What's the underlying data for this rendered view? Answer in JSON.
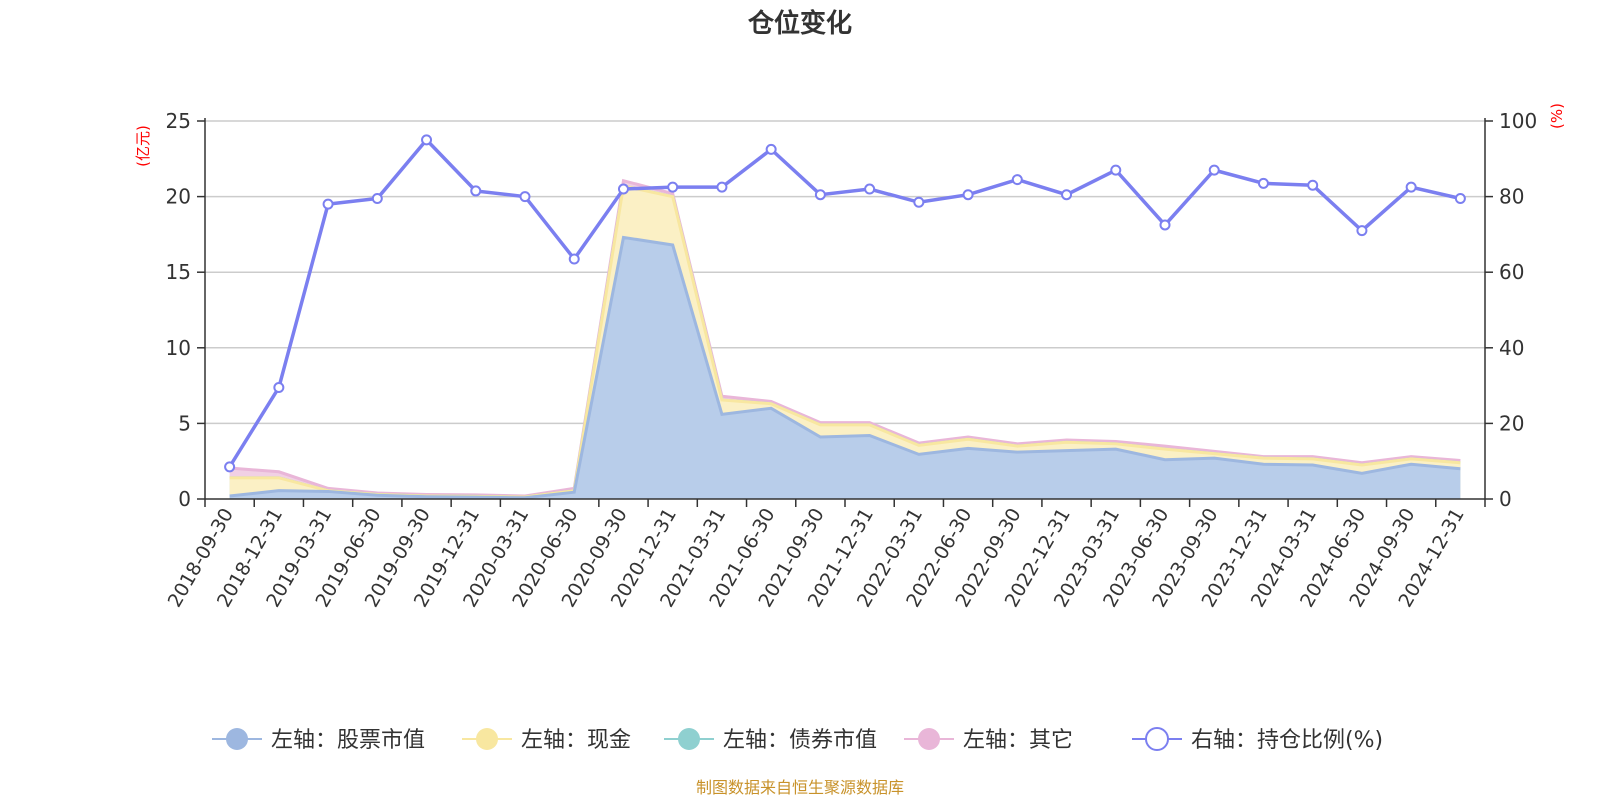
{
  "chart_data": {
    "type": "area",
    "title": "仓位变化",
    "left_unit": "(亿元)",
    "right_unit": "(%)",
    "categories": [
      "2018-09-30",
      "2018-12-31",
      "2019-03-31",
      "2019-06-30",
      "2019-09-30",
      "2019-12-31",
      "2020-03-31",
      "2020-06-30",
      "2020-09-30",
      "2020-12-31",
      "2021-03-31",
      "2021-06-30",
      "2021-09-30",
      "2021-12-31",
      "2022-03-31",
      "2022-06-30",
      "2022-09-30",
      "2022-12-31",
      "2023-03-31",
      "2023-06-30",
      "2023-09-30",
      "2023-12-31",
      "2024-03-31",
      "2024-06-30",
      "2024-09-30",
      "2024-12-31"
    ],
    "left_axis": {
      "min": 0,
      "max": 25,
      "ticks": [
        0,
        5,
        10,
        15,
        20,
        25
      ]
    },
    "right_axis": {
      "min": 0,
      "max": 100,
      "ticks": [
        0,
        20,
        40,
        60,
        80,
        100
      ]
    },
    "series": [
      {
        "name": "左轴：股票市值",
        "axis": "left",
        "stack": true,
        "color": "#9db7e0",
        "fill": "#b8cdea",
        "values": [
          0.2,
          0.55,
          0.5,
          0.25,
          0.15,
          0.12,
          0.08,
          0.45,
          17.3,
          16.8,
          5.6,
          6.0,
          4.1,
          4.2,
          2.95,
          3.35,
          3.1,
          3.2,
          3.3,
          2.6,
          2.7,
          2.3,
          2.25,
          1.7,
          2.3,
          2.0
        ]
      },
      {
        "name": "左轴：现金",
        "axis": "left",
        "stack": true,
        "color": "#f8e7a0",
        "fill": "#fbf0c5",
        "values": [
          1.2,
          0.85,
          0.05,
          0.05,
          0.05,
          0.05,
          0.05,
          0.1,
          3.4,
          3.2,
          0.95,
          0.3,
          0.8,
          0.7,
          0.6,
          0.6,
          0.4,
          0.55,
          0.35,
          0.7,
          0.3,
          0.4,
          0.4,
          0.55,
          0.35,
          0.4
        ]
      },
      {
        "name": "左轴：债券市值",
        "axis": "left",
        "stack": true,
        "color": "#8fd0d0",
        "fill": "#bfe3e3",
        "values": [
          0,
          0,
          0,
          0,
          0,
          0,
          0,
          0,
          0,
          0,
          0,
          0,
          0,
          0,
          0,
          0,
          0,
          0,
          0,
          0,
          0,
          0,
          0,
          0,
          0,
          0
        ]
      },
      {
        "name": "左轴：其它",
        "axis": "left",
        "stack": true,
        "color": "#e9b6d8",
        "fill": "#f1d0e4",
        "values": [
          0.65,
          0.4,
          0.15,
          0.1,
          0.1,
          0.1,
          0.07,
          0.15,
          0.35,
          0.2,
          0.25,
          0.15,
          0.15,
          0.15,
          0.15,
          0.15,
          0.15,
          0.15,
          0.15,
          0.2,
          0.15,
          0.1,
          0.15,
          0.15,
          0.15,
          0.15
        ]
      },
      {
        "name": "右轴：持仓比例(%)",
        "axis": "right",
        "stack": false,
        "color": "#7b7ff0",
        "values": [
          8.5,
          29.5,
          78.0,
          79.5,
          95.0,
          81.5,
          80.0,
          63.5,
          82.0,
          82.5,
          82.5,
          92.5,
          80.5,
          82.0,
          78.5,
          80.5,
          84.5,
          80.5,
          87.0,
          72.5,
          87.0,
          83.5,
          83.0,
          71.0,
          82.5,
          79.5
        ]
      }
    ],
    "source": "制图数据来自恒生聚源数据库"
  }
}
